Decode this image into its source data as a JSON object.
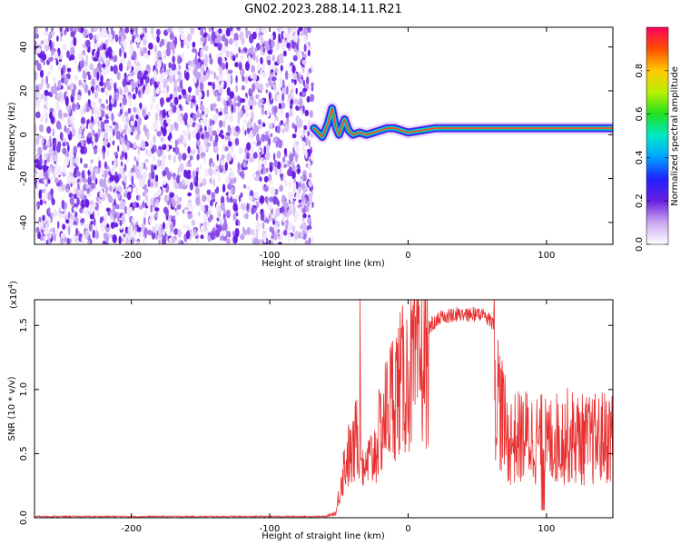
{
  "title": "GN02.2023.288.14.11.R21",
  "chart_data": [
    {
      "type": "heatmap",
      "xlabel": "Height of straight line (km)",
      "ylabel": "Frequency (Hz)",
      "xlim": [
        -270,
        148
      ],
      "ylim": [
        -50,
        49
      ],
      "xticks": [
        -200,
        -100,
        0,
        100
      ],
      "yticks": [
        -40,
        -20,
        0,
        20,
        40
      ],
      "noise_region_x": [
        -270,
        -69
      ],
      "ridge": [
        {
          "x": -68,
          "y": 3
        },
        {
          "x": -62,
          "y": -1
        },
        {
          "x": -58,
          "y": 5
        },
        {
          "x": -55,
          "y": 12
        },
        {
          "x": -52,
          "y": 3
        },
        {
          "x": -50,
          "y": 0
        },
        {
          "x": -46,
          "y": 7
        },
        {
          "x": -43,
          "y": 2
        },
        {
          "x": -40,
          "y": 0
        },
        {
          "x": -35,
          "y": 1
        },
        {
          "x": -30,
          "y": 0
        },
        {
          "x": -25,
          "y": 1
        },
        {
          "x": -20,
          "y": 2
        },
        {
          "x": -15,
          "y": 3
        },
        {
          "x": -10,
          "y": 3
        },
        {
          "x": -5,
          "y": 2
        },
        {
          "x": 0,
          "y": 1
        },
        {
          "x": 10,
          "y": 2
        },
        {
          "x": 20,
          "y": 3
        },
        {
          "x": 40,
          "y": 3
        },
        {
          "x": 60,
          "y": 3
        },
        {
          "x": 80,
          "y": 3
        },
        {
          "x": 100,
          "y": 3
        },
        {
          "x": 120,
          "y": 3
        },
        {
          "x": 148,
          "y": 3
        }
      ],
      "colorbar": {
        "label": "Normalized spectral amplitude",
        "range": [
          0.0,
          1.0
        ],
        "ticks": [
          0.0,
          0.2,
          0.4,
          0.6,
          0.8
        ]
      }
    },
    {
      "type": "line",
      "xlabel": "Height of straight line (km)",
      "ylabel": "SNR (10 * v/v)",
      "yscale_label": "(x10",
      "yscale_exp": "4",
      "yscale_close": ")",
      "xlim": [
        -270,
        148
      ],
      "ylim": [
        0,
        1.7
      ],
      "xticks": [
        -200,
        -100,
        0,
        100
      ],
      "yticks": [
        0.0,
        0.5,
        1.0,
        1.5
      ],
      "ytick_labels": [
        "0.0",
        "0.5",
        "1.0",
        "1.5"
      ],
      "color": "#e83030",
      "series": [
        {
          "envelope": [
            {
              "x": -270,
              "y": 0.01
            },
            {
              "x": -60,
              "y": 0.01
            },
            {
              "x": -52,
              "y": 0.05
            },
            {
              "x": -48,
              "y": 0.4
            },
            {
              "x": -44,
              "y": 0.6
            },
            {
              "x": -40,
              "y": 0.6
            },
            {
              "x": -36,
              "y": 0.9
            },
            {
              "x": -32,
              "y": 0.5
            },
            {
              "x": -28,
              "y": 0.55
            },
            {
              "x": -25,
              "y": 0.6
            },
            {
              "x": -18,
              "y": 0.95
            },
            {
              "x": -10,
              "y": 1.25
            },
            {
              "x": 0,
              "y": 1.38
            },
            {
              "x": 10,
              "y": 1.5
            },
            {
              "x": 20,
              "y": 1.6
            },
            {
              "x": 30,
              "y": 1.64
            },
            {
              "x": 45,
              "y": 1.65
            },
            {
              "x": 55,
              "y": 1.64
            },
            {
              "x": 62,
              "y": 1.55
            },
            {
              "x": 66,
              "y": 1.2
            },
            {
              "x": 72,
              "y": 0.8
            },
            {
              "x": 85,
              "y": 0.85
            },
            {
              "x": 100,
              "y": 0.8
            },
            {
              "x": 115,
              "y": 0.85
            },
            {
              "x": 130,
              "y": 0.8
            },
            {
              "x": 148,
              "y": 0.85
            }
          ]
        }
      ]
    }
  ]
}
